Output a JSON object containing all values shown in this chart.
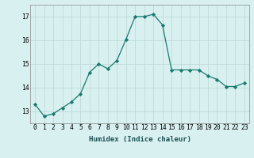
{
  "x": [
    0,
    1,
    2,
    3,
    4,
    5,
    6,
    7,
    8,
    9,
    10,
    11,
    12,
    13,
    14,
    15,
    16,
    17,
    18,
    19,
    20,
    21,
    22,
    23
  ],
  "y": [
    13.3,
    12.8,
    12.9,
    13.15,
    13.4,
    13.75,
    14.65,
    15.0,
    14.8,
    15.15,
    16.05,
    17.0,
    17.0,
    17.1,
    16.65,
    14.75,
    14.75,
    14.75,
    14.75,
    14.5,
    14.35,
    14.05,
    14.05,
    14.2
  ],
  "line_color": "#1a7a6e",
  "marker": "D",
  "marker_size": 2.2,
  "bg_color": "#d8f0f0",
  "grid_color": "#c0dada",
  "xlabel": "Humidex (Indice chaleur)",
  "ylim": [
    12.5,
    17.5
  ],
  "xlim": [
    -0.5,
    23.5
  ],
  "yticks": [
    13,
    14,
    15,
    16,
    17
  ],
  "xticks": [
    0,
    1,
    2,
    3,
    4,
    5,
    6,
    7,
    8,
    9,
    10,
    11,
    12,
    13,
    14,
    15,
    16,
    17,
    18,
    19,
    20,
    21,
    22,
    23
  ],
  "axis_fontsize": 6.5,
  "tick_fontsize": 5.8
}
